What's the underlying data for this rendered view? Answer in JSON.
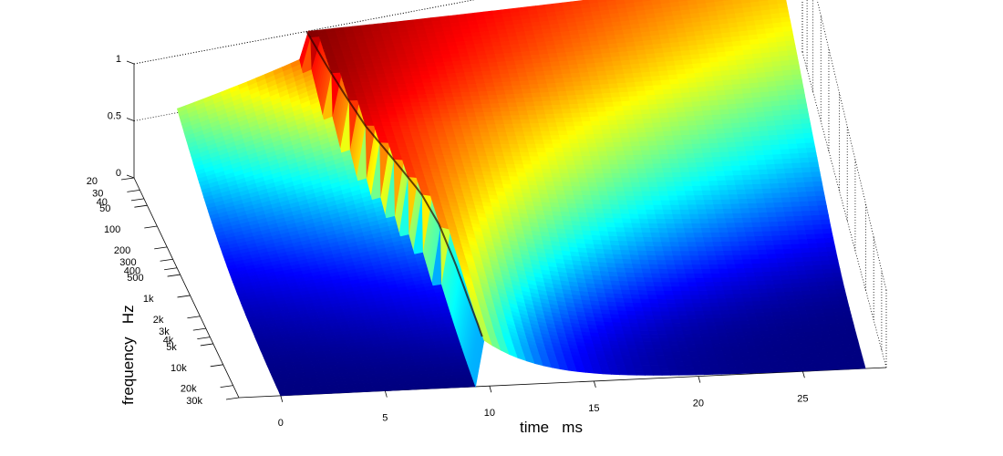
{
  "chart_data": {
    "type": "surface-waterfall",
    "colormap": "jet",
    "xlabel": "time   ms",
    "ylabel": "frequency   Hz",
    "zlabel": "",
    "x_ticks": [
      "0",
      "5",
      "10",
      "15",
      "20",
      "25"
    ],
    "y_ticks": [
      "20",
      "30",
      "40",
      "50",
      "100",
      "200",
      "300",
      "400",
      "500",
      "1k",
      "2k",
      "3k",
      "4k",
      "5k",
      "10k",
      "20k",
      "30k"
    ],
    "z_ticks": [
      "0",
      "0.5",
      "1"
    ],
    "xlim": [
      -2,
      29
    ],
    "ylim": [
      20,
      30000
    ],
    "zlim": [
      0,
      1
    ],
    "y_scale": "log",
    "grid": true,
    "surface_description_values": {
      "frequencies_hz": [
        20,
        50,
        100,
        200,
        500,
        1000,
        2000,
        5000,
        10000,
        20000
      ],
      "arrival_time_ms": [
        6.0,
        6.4,
        6.8,
        7.3,
        8.2,
        8.9,
        9.3,
        9.5,
        9.6,
        9.7
      ],
      "peak_amplitude": [
        1.0,
        0.98,
        0.95,
        0.9,
        0.85,
        0.8,
        0.75,
        0.7,
        0.65,
        0.6
      ]
    }
  }
}
